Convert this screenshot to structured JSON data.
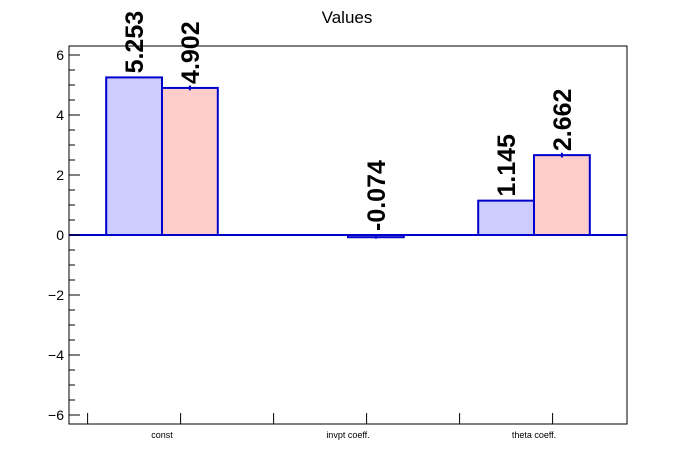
{
  "chart_data": {
    "type": "bar",
    "title": "Values",
    "categories": [
      "const",
      "invpt coeff.",
      "theta coeff."
    ],
    "series": [
      {
        "values": [
          5.253,
          null,
          1.145
        ],
        "labels": [
          "5.253",
          "",
          "1.145"
        ],
        "color": "#ccccff",
        "errors": [
          0,
          0,
          0
        ]
      },
      {
        "values": [
          4.902,
          -0.074,
          2.662
        ],
        "labels": [
          "4.902",
          "-0.074",
          "2.662"
        ],
        "color": "#ffcccc",
        "errors": [
          0.08,
          0.05,
          0.08
        ]
      }
    ],
    "ylim": [
      -6.3,
      6.3
    ],
    "yticks": [
      -6,
      -4,
      -2,
      0,
      2,
      4,
      6
    ],
    "ytick_labels": [
      "−6",
      "−4",
      "−2",
      "0",
      "2",
      "4",
      "6"
    ],
    "xlabel": "",
    "ylabel": "",
    "grid": false,
    "edge_color": "#0000cc"
  }
}
